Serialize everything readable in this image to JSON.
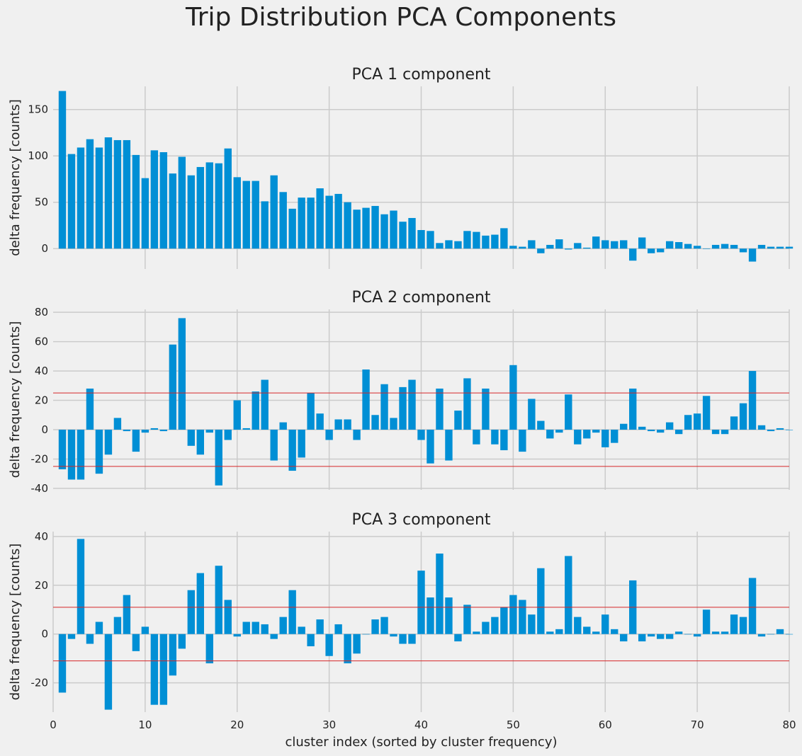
{
  "figure": {
    "title": "Trip Distribution PCA Components"
  },
  "chart_data": [
    {
      "type": "bar",
      "title": "PCA 1 component",
      "xlabel": "",
      "ylabel": "delta frequency [counts]",
      "xlim": [
        0,
        80
      ],
      "ylim": [
        -22,
        175
      ],
      "xticks": [
        10,
        20,
        30,
        40,
        50,
        60,
        70,
        80
      ],
      "yticks": [
        0,
        50,
        100,
        150
      ],
      "x_tick_labels_visible": false,
      "grid": true,
      "threshold_lines": [],
      "x": [
        1,
        2,
        3,
        4,
        5,
        6,
        7,
        8,
        9,
        10,
        11,
        12,
        13,
        14,
        15,
        16,
        17,
        18,
        19,
        20,
        21,
        22,
        23,
        24,
        25,
        26,
        27,
        28,
        29,
        30,
        31,
        32,
        33,
        34,
        35,
        36,
        37,
        38,
        39,
        40,
        41,
        42,
        43,
        44,
        45,
        46,
        47,
        48,
        49,
        50,
        51,
        52,
        53,
        54,
        55,
        56,
        57,
        58,
        59,
        60,
        61,
        62,
        63,
        64,
        65,
        66,
        67,
        68,
        69,
        70,
        71,
        72,
        73,
        74,
        75,
        76,
        77,
        78,
        79,
        80
      ],
      "values": [
        170,
        102,
        109,
        118,
        109,
        120,
        117,
        117,
        101,
        76,
        106,
        104,
        81,
        99,
        79,
        88,
        93,
        92,
        108,
        77,
        73,
        73,
        51,
        79,
        61,
        43,
        55,
        55,
        65,
        57,
        59,
        50,
        42,
        44,
        46,
        37,
        41,
        29,
        33,
        20,
        19,
        6,
        9,
        8,
        19,
        18,
        14,
        15,
        22,
        3,
        2,
        9,
        -5,
        4,
        10,
        -1,
        6,
        1,
        13,
        9,
        8,
        9,
        -13,
        12,
        -5,
        -4,
        8,
        7,
        5,
        3,
        0,
        4,
        5,
        4,
        -4,
        -14,
        4,
        2,
        2,
        2
      ]
    },
    {
      "type": "bar",
      "title": "PCA 2 component",
      "xlabel": "",
      "ylabel": "delta frequency [counts]",
      "xlim": [
        0,
        80
      ],
      "ylim": [
        -41,
        82
      ],
      "xticks": [
        10,
        20,
        30,
        40,
        50,
        60,
        70,
        80
      ],
      "yticks": [
        -40,
        -20,
        0,
        20,
        40,
        60,
        80
      ],
      "x_tick_labels_visible": false,
      "grid": true,
      "threshold_lines": [
        25,
        -25
      ],
      "x": [
        1,
        2,
        3,
        4,
        5,
        6,
        7,
        8,
        9,
        10,
        11,
        12,
        13,
        14,
        15,
        16,
        17,
        18,
        19,
        20,
        21,
        22,
        23,
        24,
        25,
        26,
        27,
        28,
        29,
        30,
        31,
        32,
        33,
        34,
        35,
        36,
        37,
        38,
        39,
        40,
        41,
        42,
        43,
        44,
        45,
        46,
        47,
        48,
        49,
        50,
        51,
        52,
        53,
        54,
        55,
        56,
        57,
        58,
        59,
        60,
        61,
        62,
        63,
        64,
        65,
        66,
        67,
        68,
        69,
        70,
        71,
        72,
        73,
        74,
        75,
        76,
        77,
        78,
        79,
        80
      ],
      "values": [
        -27,
        -34,
        -34,
        28,
        -30,
        -17,
        8,
        -1,
        -15,
        -2,
        1,
        -1,
        58,
        76,
        -11,
        -17,
        -2,
        -38,
        -7,
        20,
        1,
        26,
        34,
        -21,
        5,
        -28,
        -19,
        25,
        11,
        -7,
        7,
        7,
        -7,
        41,
        10,
        31,
        8,
        29,
        34,
        -7,
        -23,
        28,
        -21,
        13,
        35,
        -10,
        28,
        -10,
        -14,
        44,
        -15,
        21,
        6,
        -6,
        -2,
        24,
        -10,
        -6,
        -2,
        -12,
        -9,
        4,
        28,
        2,
        -1,
        -2,
        5,
        -3,
        10,
        11,
        23,
        -3,
        -3,
        9,
        18,
        40,
        3,
        -1,
        1,
        0
      ]
    },
    {
      "type": "bar",
      "title": "PCA 3 component",
      "xlabel": "cluster index (sorted by cluster frequency)",
      "ylabel": "delta frequency [counts]",
      "xlim": [
        0,
        80
      ],
      "ylim": [
        -32,
        42
      ],
      "xticks": [
        0,
        10,
        20,
        30,
        40,
        50,
        60,
        70,
        80
      ],
      "yticks": [
        -20,
        0,
        20,
        40
      ],
      "x_tick_labels_visible": true,
      "grid": true,
      "threshold_lines": [
        11,
        -11
      ],
      "x": [
        1,
        2,
        3,
        4,
        5,
        6,
        7,
        8,
        9,
        10,
        11,
        12,
        13,
        14,
        15,
        16,
        17,
        18,
        19,
        20,
        21,
        22,
        23,
        24,
        25,
        26,
        27,
        28,
        29,
        30,
        31,
        32,
        33,
        34,
        35,
        36,
        37,
        38,
        39,
        40,
        41,
        42,
        43,
        44,
        45,
        46,
        47,
        48,
        49,
        50,
        51,
        52,
        53,
        54,
        55,
        56,
        57,
        58,
        59,
        60,
        61,
        62,
        63,
        64,
        65,
        66,
        67,
        68,
        69,
        70,
        71,
        72,
        73,
        74,
        75,
        76,
        77,
        78,
        79,
        80
      ],
      "values": [
        -24,
        -2,
        39,
        -4,
        5,
        -31,
        7,
        16,
        -7,
        3,
        -29,
        -29,
        -17,
        -6,
        18,
        25,
        -12,
        28,
        14,
        -1,
        5,
        5,
        4,
        -2,
        7,
        18,
        3,
        -5,
        6,
        -9,
        4,
        -12,
        -8,
        0,
        6,
        7,
        -1,
        -4,
        -4,
        26,
        15,
        33,
        15,
        -3,
        12,
        1,
        5,
        7,
        11,
        16,
        14,
        8,
        27,
        1,
        2,
        32,
        7,
        3,
        1,
        8,
        2,
        -3,
        22,
        -3,
        -1,
        -2,
        -2,
        1,
        0,
        -1,
        10,
        1,
        1,
        8,
        7,
        23,
        -1,
        0,
        2,
        0
      ]
    }
  ]
}
